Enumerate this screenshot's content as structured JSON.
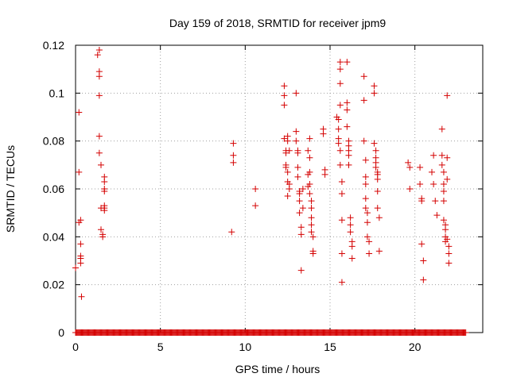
{
  "chart_data": {
    "type": "scatter",
    "title": "Day 159 of 2018, SRMTID for receiver jpm9",
    "xlabel": "GPS time / hours",
    "ylabel": "SRMTID / TECUs",
    "xlim": [
      0,
      24
    ],
    "ylim": [
      0,
      0.12
    ],
    "xticks": [
      0,
      5,
      10,
      15,
      20
    ],
    "yticks": [
      0,
      0.02,
      0.04,
      0.06,
      0.08,
      0.1,
      0.12
    ],
    "ytick_labels": [
      "0",
      "0.02",
      "0.04",
      "0.06",
      "0.08",
      "0.1",
      "0.12"
    ],
    "grid": true,
    "marker": "+",
    "color": "#d40000",
    "zero_baseline_hours": [
      0,
      23
    ],
    "series": [
      {
        "name": "SRMTID",
        "x": [
          0.0,
          0.2,
          0.2,
          0.2,
          0.3,
          0.3,
          0.3,
          0.3,
          0.3,
          0.35,
          1.3,
          1.4,
          1.4,
          1.4,
          1.4,
          1.4,
          1.4,
          1.5,
          1.5,
          1.5,
          1.6,
          1.6,
          1.7,
          1.7,
          1.7,
          1.7,
          1.7,
          1.7,
          1.7,
          9.2,
          9.3,
          9.3,
          9.3,
          10.6,
          10.6,
          12.3,
          12.3,
          12.3,
          12.3,
          12.4,
          12.4,
          12.4,
          12.4,
          12.5,
          12.5,
          12.5,
          12.5,
          12.5,
          12.6,
          12.6,
          12.6,
          13.0,
          13.0,
          13.0,
          13.1,
          13.1,
          13.1,
          13.1,
          13.2,
          13.2,
          13.2,
          13.2,
          13.3,
          13.3,
          13.3,
          13.4,
          13.4,
          13.7,
          13.7,
          13.7,
          13.8,
          13.8,
          13.8,
          13.8,
          13.8,
          13.9,
          13.9,
          13.9,
          13.9,
          13.9,
          14.0,
          14.0,
          14.0,
          14.6,
          14.6,
          14.7,
          14.7,
          15.4,
          15.5,
          15.5,
          15.5,
          15.5,
          15.6,
          15.6,
          15.6,
          15.6,
          15.6,
          15.6,
          15.7,
          15.7,
          15.7,
          15.7,
          15.7,
          16.0,
          16.0,
          16.0,
          16.0,
          16.1,
          16.1,
          16.1,
          16.1,
          16.1,
          16.2,
          16.2,
          16.2,
          16.3,
          16.3,
          16.3,
          17.0,
          17.0,
          17.0,
          17.1,
          17.1,
          17.1,
          17.1,
          17.1,
          17.2,
          17.2,
          17.2,
          17.3,
          17.3,
          17.6,
          17.6,
          17.6,
          17.7,
          17.7,
          17.7,
          17.7,
          17.8,
          17.8,
          17.8,
          17.8,
          17.8,
          17.9,
          17.9,
          19.6,
          19.7,
          19.7,
          20.3,
          20.3,
          20.4,
          20.4,
          20.4,
          20.5,
          20.5,
          21.0,
          21.1,
          21.1,
          21.2,
          21.3,
          21.6,
          21.6,
          21.6,
          21.7,
          21.7,
          21.7,
          21.7,
          21.7,
          21.8,
          21.8,
          21.8,
          21.8,
          21.9,
          21.9,
          21.9,
          21.9,
          22.0,
          22.0,
          22.0
        ],
        "y": [
          0.027,
          0.092,
          0.067,
          0.046,
          0.047,
          0.037,
          0.032,
          0.031,
          0.029,
          0.015,
          0.116,
          0.118,
          0.109,
          0.107,
          0.099,
          0.082,
          0.075,
          0.07,
          0.043,
          0.052,
          0.041,
          0.04,
          0.065,
          0.063,
          0.06,
          0.059,
          0.053,
          0.052,
          0.051,
          0.042,
          0.071,
          0.074,
          0.079,
          0.06,
          0.053,
          0.103,
          0.099,
          0.095,
          0.081,
          0.076,
          0.075,
          0.07,
          0.069,
          0.08,
          0.082,
          0.067,
          0.063,
          0.057,
          0.076,
          0.062,
          0.06,
          0.1,
          0.084,
          0.08,
          0.076,
          0.075,
          0.069,
          0.065,
          0.059,
          0.058,
          0.055,
          0.05,
          0.044,
          0.041,
          0.026,
          0.06,
          0.052,
          0.076,
          0.066,
          0.061,
          0.081,
          0.073,
          0.067,
          0.062,
          0.058,
          0.055,
          0.052,
          0.048,
          0.045,
          0.042,
          0.04,
          0.034,
          0.033,
          0.085,
          0.083,
          0.068,
          0.066,
          0.09,
          0.089,
          0.085,
          0.081,
          0.079,
          0.113,
          0.11,
          0.104,
          0.095,
          0.076,
          0.07,
          0.063,
          0.058,
          0.047,
          0.033,
          0.021,
          0.113,
          0.096,
          0.093,
          0.086,
          0.08,
          0.078,
          0.076,
          0.074,
          0.07,
          0.048,
          0.045,
          0.042,
          0.038,
          0.031,
          0.036,
          0.107,
          0.097,
          0.08,
          0.072,
          0.065,
          0.062,
          0.056,
          0.052,
          0.05,
          0.046,
          0.04,
          0.038,
          0.033,
          0.103,
          0.1,
          0.079,
          0.076,
          0.073,
          0.071,
          0.069,
          0.067,
          0.066,
          0.064,
          0.059,
          0.052,
          0.048,
          0.034,
          0.071,
          0.069,
          0.06,
          0.069,
          0.062,
          0.056,
          0.055,
          0.037,
          0.03,
          0.022,
          0.067,
          0.074,
          0.062,
          0.055,
          0.049,
          0.085,
          0.074,
          0.07,
          0.067,
          0.062,
          0.059,
          0.055,
          0.047,
          0.045,
          0.043,
          0.04,
          0.038,
          0.099,
          0.073,
          0.064,
          0.039,
          0.036,
          0.033,
          0.029
        ]
      }
    ]
  }
}
